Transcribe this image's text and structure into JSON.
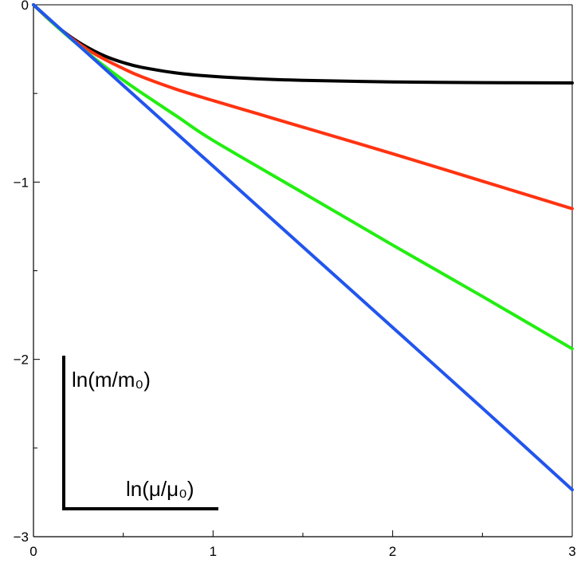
{
  "chart_data": {
    "type": "line",
    "xlim": [
      0,
      3
    ],
    "ylim": [
      -3,
      0
    ],
    "x_ticks": [
      0,
      1,
      2,
      3
    ],
    "x_tick_labels": [
      "0",
      "1",
      "2",
      "3"
    ],
    "y_ticks": [
      0,
      -1,
      -2,
      -3
    ],
    "y_tick_labels": [
      "0",
      "−1",
      "−2",
      "−3"
    ],
    "xlabel": "ln(μ/μ₀)",
    "ylabel": "ln(m/m₀)",
    "grid": false,
    "legend": "none",
    "series": [
      {
        "color": "#000000",
        "x": [
          0,
          0.1,
          0.2,
          0.3,
          0.4,
          0.5,
          0.6,
          0.8,
          1.0,
          1.25,
          1.5,
          2.0,
          2.5,
          3.0
        ],
        "y": [
          0,
          -0.095,
          -0.176,
          -0.24,
          -0.29,
          -0.326,
          -0.352,
          -0.385,
          -0.404,
          -0.418,
          -0.426,
          -0.435,
          -0.439,
          -0.441
        ]
      },
      {
        "color": "#ff3311",
        "x": [
          0,
          0.1,
          0.2,
          0.3,
          0.4,
          0.5,
          0.6,
          0.8,
          1.0,
          1.25,
          1.5,
          2.0,
          2.5,
          3.0
        ],
        "y": [
          0,
          -0.095,
          -0.18,
          -0.252,
          -0.31,
          -0.36,
          -0.405,
          -0.478,
          -0.54,
          -0.615,
          -0.69,
          -0.84,
          -0.995,
          -1.15
        ]
      },
      {
        "color": "#22ee11",
        "x": [
          0,
          0.1,
          0.2,
          0.3,
          0.4,
          0.5,
          0.6,
          0.8,
          1.0,
          1.5,
          2.0,
          2.5,
          3.0
        ],
        "y": [
          0,
          -0.095,
          -0.185,
          -0.27,
          -0.35,
          -0.425,
          -0.495,
          -0.63,
          -0.765,
          -1.06,
          -1.355,
          -1.645,
          -1.94
        ]
      },
      {
        "color": "#2255ee",
        "x": [
          0,
          0.5,
          1.0,
          1.5,
          2.0,
          2.5,
          3.0
        ],
        "y": [
          0,
          -0.455,
          -0.91,
          -1.365,
          -1.82,
          -2.275,
          -2.735
        ]
      }
    ]
  }
}
